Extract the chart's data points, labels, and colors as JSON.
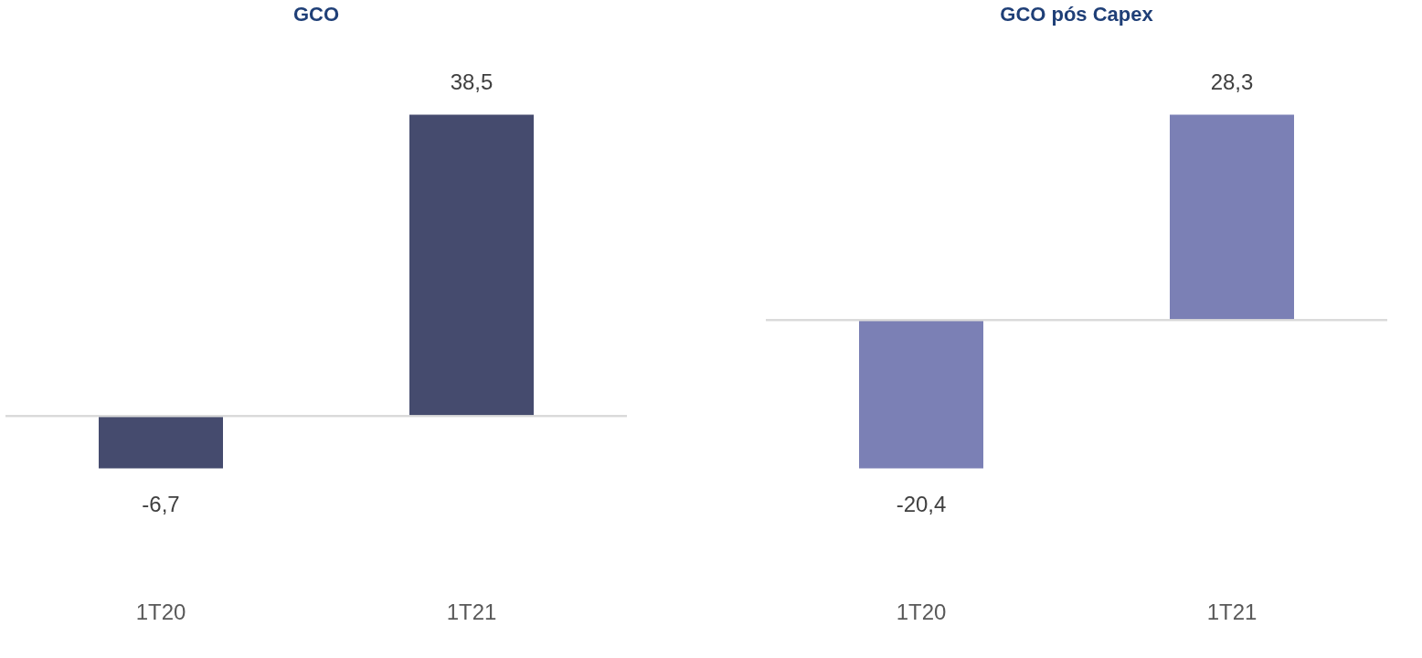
{
  "chart_data": [
    {
      "type": "bar",
      "title": "GCO",
      "categories": [
        "1T20",
        "1T21"
      ],
      "series": [
        {
          "color": "#454b6e",
          "values": [
            -6.7,
            38.5
          ],
          "value_labels": [
            "-6,7",
            "38,5"
          ]
        }
      ]
    },
    {
      "type": "bar",
      "title": "GCO pós Capex",
      "categories": [
        "1T20",
        "1T21"
      ],
      "series": [
        {
          "color": "#7b80b5",
          "values": [
            -20.4,
            28.3
          ],
          "value_labels": [
            "-20,4",
            "28,3"
          ]
        }
      ]
    }
  ]
}
